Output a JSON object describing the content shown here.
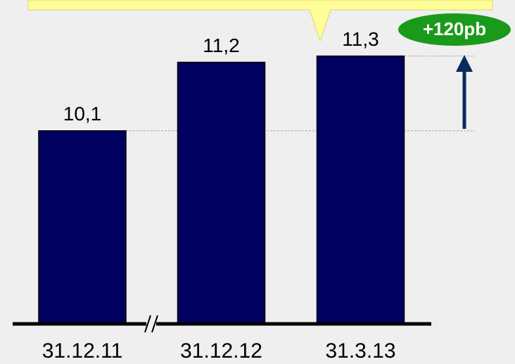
{
  "chart_data": {
    "type": "bar",
    "categories": [
      "31.12.11",
      "31.12.12",
      "31.3.13"
    ],
    "values": [
      10.1,
      11.2,
      11.3
    ],
    "value_labels": [
      "10,1",
      "11,2",
      "11,3"
    ],
    "color": "#000060",
    "ylim": [
      7,
      12.2
    ],
    "annotation": "+120pb"
  }
}
